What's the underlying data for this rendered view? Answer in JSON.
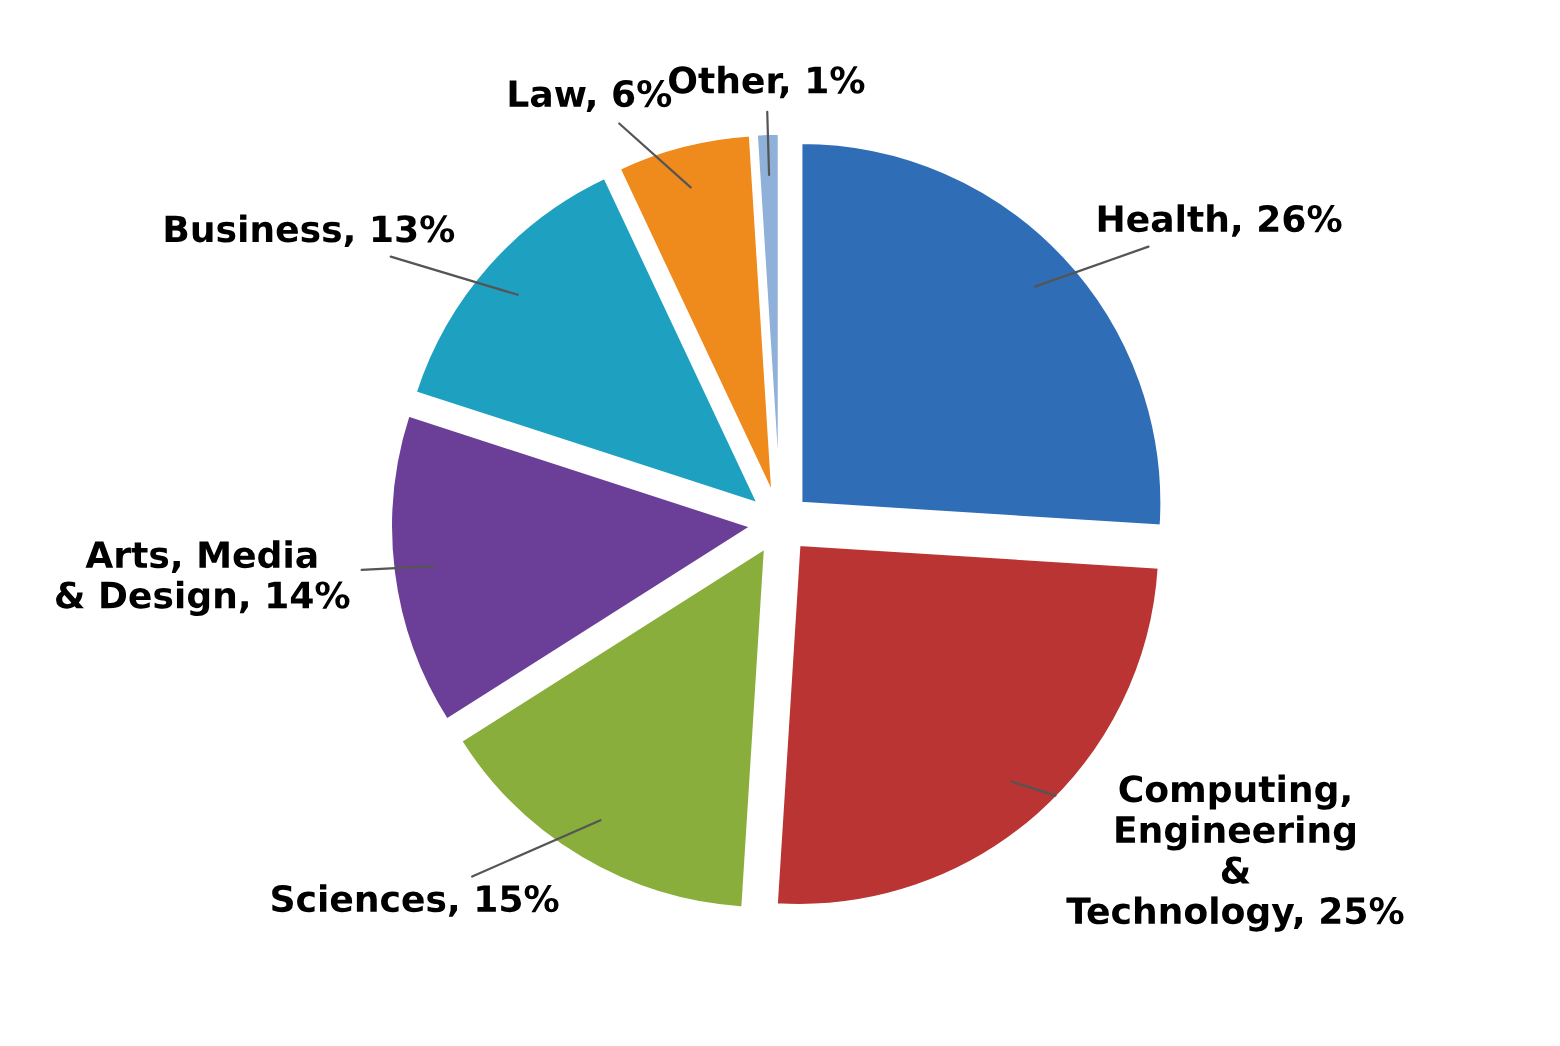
{
  "chart_data": {
    "type": "pie",
    "categories": [
      "Health",
      "Computing,\nEngineering\n&\nTechnology",
      "Sciences",
      "Arts, Media\n& Design",
      "Business",
      "Law",
      "Other"
    ],
    "values": [
      26,
      25,
      15,
      14,
      13,
      6,
      1
    ],
    "value_labels": [
      "26%",
      "25%",
      "15%",
      "14%",
      "13%",
      "6%",
      "1%"
    ],
    "colors": [
      "#2f6db6",
      "#b93432",
      "#8aae3c",
      "#6b3f98",
      "#1ea0c0",
      "#ef8a1c",
      "#8fb0d8"
    ],
    "legend": false
  }
}
